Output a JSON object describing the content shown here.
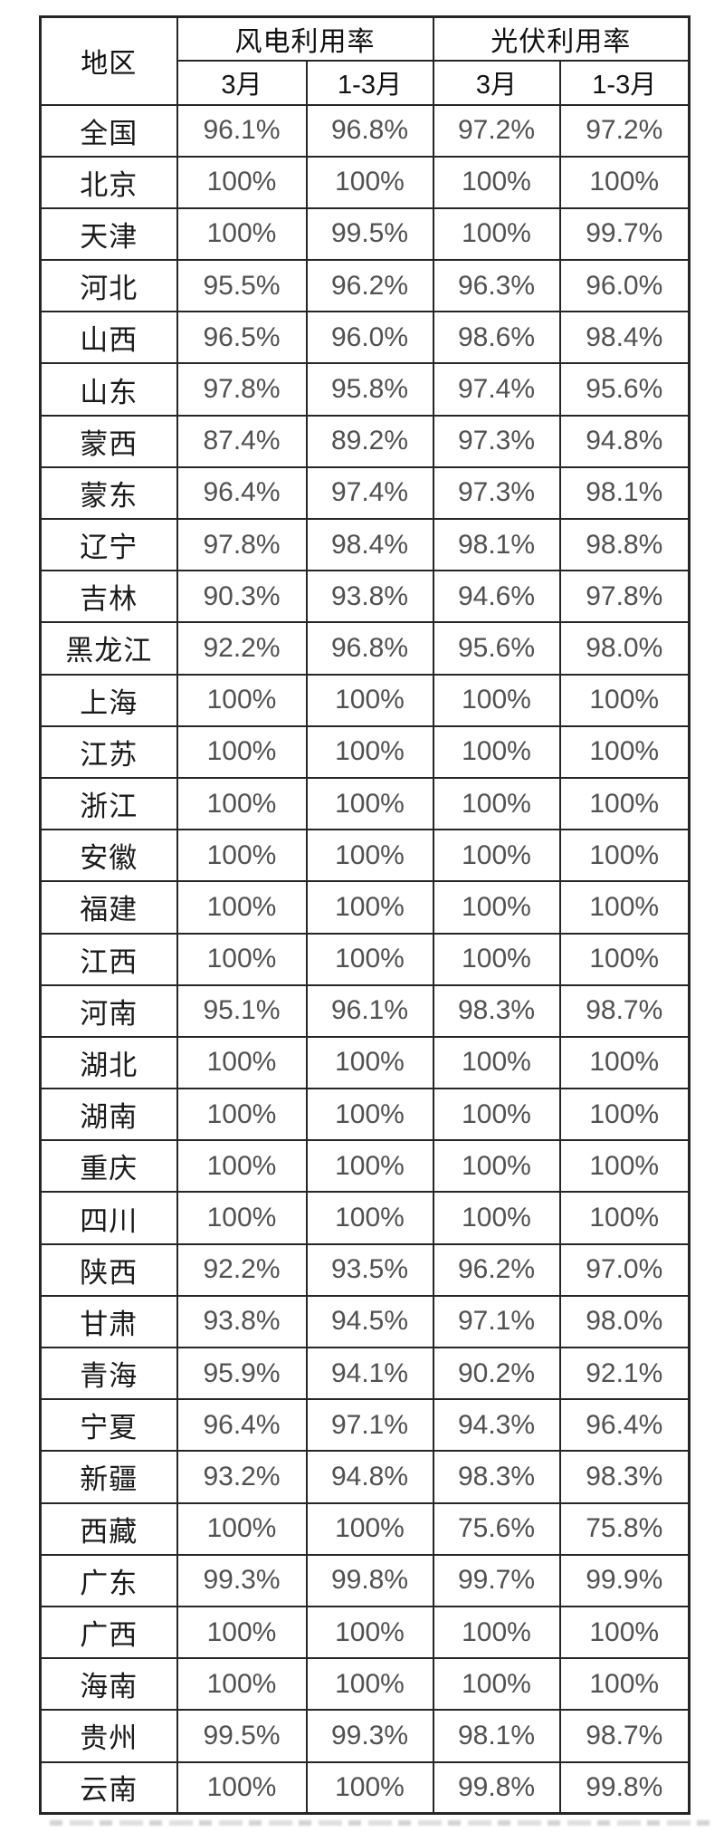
{
  "colors": {
    "border": "#262626",
    "header_text": "#111111",
    "region_text": "#1a1a1a",
    "value_text": "#515151",
    "background": "#ffffff"
  },
  "chart_data": {
    "type": "table",
    "region_header": "地区",
    "groups": [
      {
        "label": "风电利用率",
        "sub": [
          "3月",
          "1-3月"
        ]
      },
      {
        "label": "光伏利用率",
        "sub": [
          "3月",
          "1-3月"
        ]
      }
    ],
    "rows": [
      {
        "region": "全国",
        "values": [
          "96.1%",
          "96.8%",
          "97.2%",
          "97.2%"
        ]
      },
      {
        "region": "北京",
        "values": [
          "100%",
          "100%",
          "100%",
          "100%"
        ]
      },
      {
        "region": "天津",
        "values": [
          "100%",
          "99.5%",
          "100%",
          "99.7%"
        ]
      },
      {
        "region": "河北",
        "values": [
          "95.5%",
          "96.2%",
          "96.3%",
          "96.0%"
        ]
      },
      {
        "region": "山西",
        "values": [
          "96.5%",
          "96.0%",
          "98.6%",
          "98.4%"
        ]
      },
      {
        "region": "山东",
        "values": [
          "97.8%",
          "95.8%",
          "97.4%",
          "95.6%"
        ]
      },
      {
        "region": "蒙西",
        "values": [
          "87.4%",
          "89.2%",
          "97.3%",
          "94.8%"
        ]
      },
      {
        "region": "蒙东",
        "values": [
          "96.4%",
          "97.4%",
          "97.3%",
          "98.1%"
        ]
      },
      {
        "region": "辽宁",
        "values": [
          "97.8%",
          "98.4%",
          "98.1%",
          "98.8%"
        ]
      },
      {
        "region": "吉林",
        "values": [
          "90.3%",
          "93.8%",
          "94.6%",
          "97.8%"
        ]
      },
      {
        "region": "黑龙江",
        "values": [
          "92.2%",
          "96.8%",
          "95.6%",
          "98.0%"
        ]
      },
      {
        "region": "上海",
        "values": [
          "100%",
          "100%",
          "100%",
          "100%"
        ]
      },
      {
        "region": "江苏",
        "values": [
          "100%",
          "100%",
          "100%",
          "100%"
        ]
      },
      {
        "region": "浙江",
        "values": [
          "100%",
          "100%",
          "100%",
          "100%"
        ]
      },
      {
        "region": "安徽",
        "values": [
          "100%",
          "100%",
          "100%",
          "100%"
        ]
      },
      {
        "region": "福建",
        "values": [
          "100%",
          "100%",
          "100%",
          "100%"
        ]
      },
      {
        "region": "江西",
        "values": [
          "100%",
          "100%",
          "100%",
          "100%"
        ]
      },
      {
        "region": "河南",
        "values": [
          "95.1%",
          "96.1%",
          "98.3%",
          "98.7%"
        ]
      },
      {
        "region": "湖北",
        "values": [
          "100%",
          "100%",
          "100%",
          "100%"
        ]
      },
      {
        "region": "湖南",
        "values": [
          "100%",
          "100%",
          "100%",
          "100%"
        ]
      },
      {
        "region": "重庆",
        "values": [
          "100%",
          "100%",
          "100%",
          "100%"
        ]
      },
      {
        "region": "四川",
        "values": [
          "100%",
          "100%",
          "100%",
          "100%"
        ]
      },
      {
        "region": "陕西",
        "values": [
          "92.2%",
          "93.5%",
          "96.2%",
          "97.0%"
        ]
      },
      {
        "region": "甘肃",
        "values": [
          "93.8%",
          "94.5%",
          "97.1%",
          "98.0%"
        ]
      },
      {
        "region": "青海",
        "values": [
          "95.9%",
          "94.1%",
          "90.2%",
          "92.1%"
        ]
      },
      {
        "region": "宁夏",
        "values": [
          "96.4%",
          "97.1%",
          "94.3%",
          "96.4%"
        ]
      },
      {
        "region": "新疆",
        "values": [
          "93.2%",
          "94.8%",
          "98.3%",
          "98.3%"
        ]
      },
      {
        "region": "西藏",
        "values": [
          "100%",
          "100%",
          "75.6%",
          "75.8%"
        ]
      },
      {
        "region": "广东",
        "values": [
          "99.3%",
          "99.8%",
          "99.7%",
          "99.9%"
        ]
      },
      {
        "region": "广西",
        "values": [
          "100%",
          "100%",
          "100%",
          "100%"
        ]
      },
      {
        "region": "海南",
        "values": [
          "100%",
          "100%",
          "100%",
          "100%"
        ]
      },
      {
        "region": "贵州",
        "values": [
          "99.5%",
          "99.3%",
          "98.1%",
          "98.7%"
        ]
      },
      {
        "region": "云南",
        "values": [
          "100%",
          "100%",
          "99.8%",
          "99.8%"
        ]
      }
    ]
  }
}
